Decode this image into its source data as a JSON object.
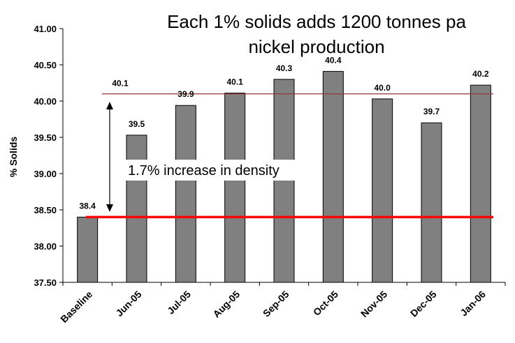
{
  "chart_data": {
    "type": "bar",
    "title_lines": [
      "Each 1% solids adds 1200 tonnes pa",
      "nickel production"
    ],
    "ylabel": "% Solids",
    "ylim": [
      37.5,
      41.0
    ],
    "yticks": [
      "37.50",
      "38.00",
      "38.50",
      "39.00",
      "39.50",
      "40.00",
      "40.50",
      "41.00"
    ],
    "categories": [
      "Baseline",
      "Jun-05",
      "Jul-05",
      "Aug-05",
      "Sep-05",
      "Oct-05",
      "Nov-05",
      "Dec-05",
      "Jan-06"
    ],
    "values": [
      38.4,
      39.53,
      39.94,
      40.11,
      40.3,
      40.41,
      40.03,
      39.7,
      40.22
    ],
    "data_labels": [
      "38.4",
      "39.5",
      "39.9",
      "40.1",
      "40.3",
      "40.4",
      "40.0",
      "39.7",
      "40.2"
    ],
    "bar_color": "#808080",
    "reference_lines": [
      {
        "value": 40.1,
        "label": "40.1",
        "color": "#993333"
      },
      {
        "value": 38.4,
        "label": "",
        "color": "#ff0000"
      }
    ],
    "annotation": "1.7% increase in density",
    "grid": false
  }
}
